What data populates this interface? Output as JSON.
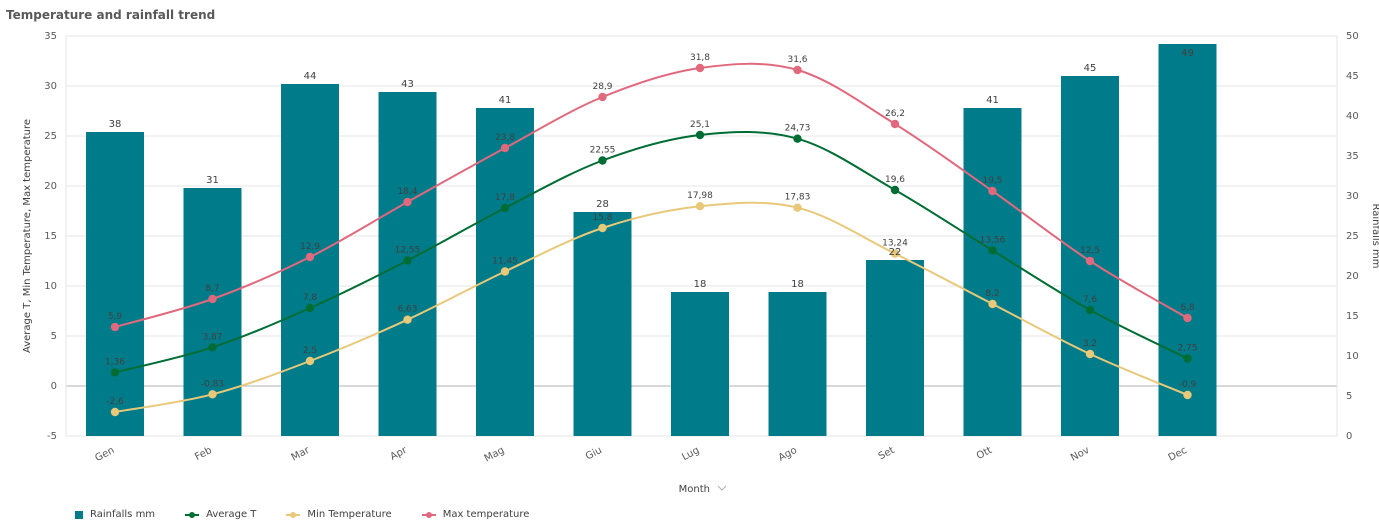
{
  "title": "Temperature and rainfall trend",
  "colors": {
    "rain": "#007b89",
    "avg": "#006e34",
    "min": "#e8c97a",
    "max": "#e0697d",
    "grid": "#e6e6e6",
    "zero": "#b3b3b3"
  },
  "x_axis": {
    "title": "Month",
    "selector_icon": "chevron-down-icon"
  },
  "legend": [
    "Rainfalls mm",
    "Average T",
    "Min Temperature",
    "Max temperature"
  ],
  "chart_data": {
    "type": "bar",
    "title": "Temperature and rainfall trend",
    "xlabel": "Month",
    "ylabel": "Average T, Min Temperature, Max temperature",
    "y2label": "Rainfalls mm",
    "ylim": [
      -5,
      35
    ],
    "y2lim": [
      0,
      50
    ],
    "yticks": [
      -5,
      0,
      5,
      10,
      15,
      20,
      25,
      30,
      35
    ],
    "y2ticks": [
      0,
      5,
      10,
      15,
      20,
      25,
      30,
      35,
      40,
      45,
      50
    ],
    "grid": true,
    "legend_position": "bottom-left",
    "categories": [
      "Gen",
      "Feb",
      "Mar",
      "Apr",
      "Mag",
      "Giu",
      "Lug",
      "Ago",
      "Set",
      "Ott",
      "Nov",
      "Dec"
    ],
    "series": [
      {
        "name": "Rainfalls mm",
        "type": "bar",
        "axis": "right",
        "values": [
          38,
          31,
          44,
          43,
          41,
          28,
          18,
          18,
          22,
          41,
          45,
          49
        ],
        "labels": [
          "38",
          "31",
          "44",
          "43",
          "41",
          "28",
          "18",
          "18",
          "22",
          "41",
          "45",
          "49"
        ]
      },
      {
        "name": "Average T",
        "type": "line",
        "axis": "left",
        "values": [
          1.36,
          3.87,
          7.8,
          12.55,
          17.8,
          22.55,
          25.1,
          24.73,
          19.6,
          13.56,
          7.6,
          2.75
        ],
        "labels": [
          "1,36",
          "3,87",
          "7,8",
          "12,55",
          "17,8",
          "22,55",
          "25,1",
          "24,73",
          "19,6",
          "13,56",
          "7,6",
          "2,75"
        ]
      },
      {
        "name": "Min Temperature",
        "type": "line",
        "axis": "left",
        "values": [
          -2.6,
          -0.83,
          2.5,
          6.63,
          11.45,
          15.8,
          17.98,
          17.83,
          13.24,
          8.2,
          3.2,
          -0.9
        ],
        "labels": [
          "-2,6",
          "-0,83",
          "2,5",
          "6,63",
          "11,45",
          "15,8",
          "17,98",
          "17,83",
          "13,24",
          "8,2",
          "3,2",
          "-0,9"
        ]
      },
      {
        "name": "Max temperature",
        "type": "line",
        "axis": "left",
        "values": [
          5.9,
          8.7,
          12.9,
          18.4,
          23.8,
          28.9,
          31.8,
          31.6,
          26.2,
          19.5,
          12.5,
          6.8
        ],
        "labels": [
          "5,9",
          "8,7",
          "12,9",
          "18,4",
          "23,8",
          "28,9",
          "31,8",
          "31,6",
          "26,2",
          "19,5",
          "12,5",
          "6,8"
        ]
      }
    ]
  }
}
